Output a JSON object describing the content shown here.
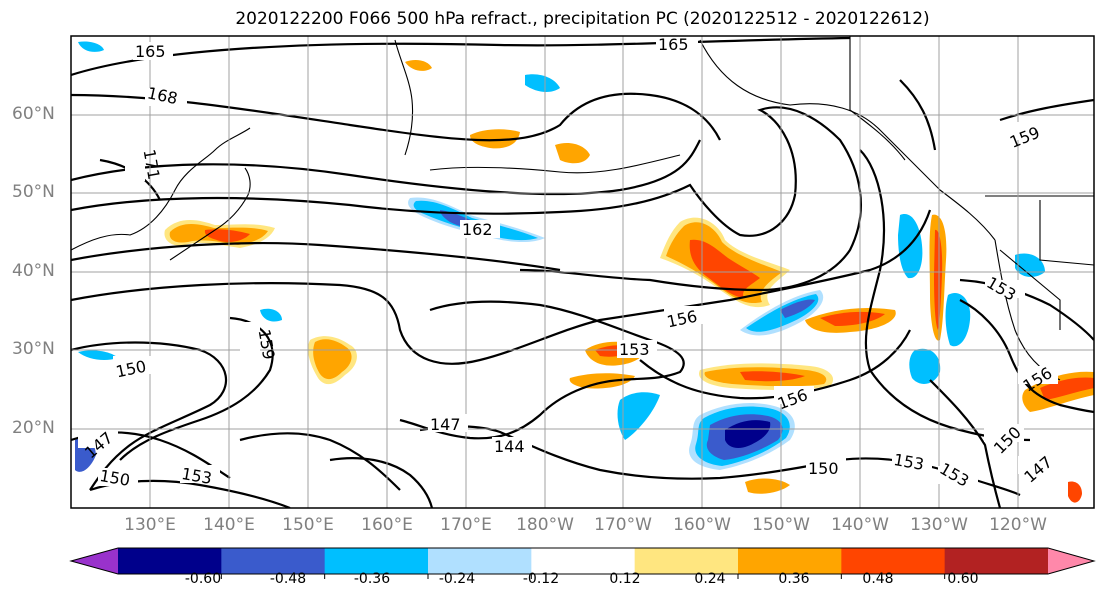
{
  "title": "2020122200 F066 500 hPa refract., precipitation PC (2020122512 - 2020122612)",
  "map": {
    "lat_labels": [
      "60°N",
      "50°N",
      "40°N",
      "30°N",
      "20°N"
    ],
    "lon_labels": [
      "130°E",
      "140°E",
      "150°E",
      "160°E",
      "170°E",
      "180°W",
      "170°W",
      "160°W",
      "150°W",
      "140°W",
      "130°W",
      "120°W"
    ],
    "contour_labels": [
      "165",
      "165",
      "168",
      "171",
      "162",
      "159",
      "159",
      "156",
      "156",
      "156",
      "153",
      "153",
      "153",
      "153",
      "150",
      "150",
      "150",
      "150",
      "147",
      "147",
      "147",
      "144",
      "153"
    ]
  },
  "colorbar": {
    "tick_labels": [
      "-0.60",
      "-0.48",
      "-0.36",
      "-0.24",
      "-0.12",
      "0.12",
      "0.24",
      "0.36",
      "0.48",
      "0.60"
    ],
    "colors": [
      "#9932cc",
      "#00008b",
      "#3a5bcc",
      "#00bfff",
      "#b0e0ff",
      "#ffffff",
      "#ffe680",
      "#ffa500",
      "#ff4500",
      "#b22222",
      "#ff88aa"
    ]
  }
}
